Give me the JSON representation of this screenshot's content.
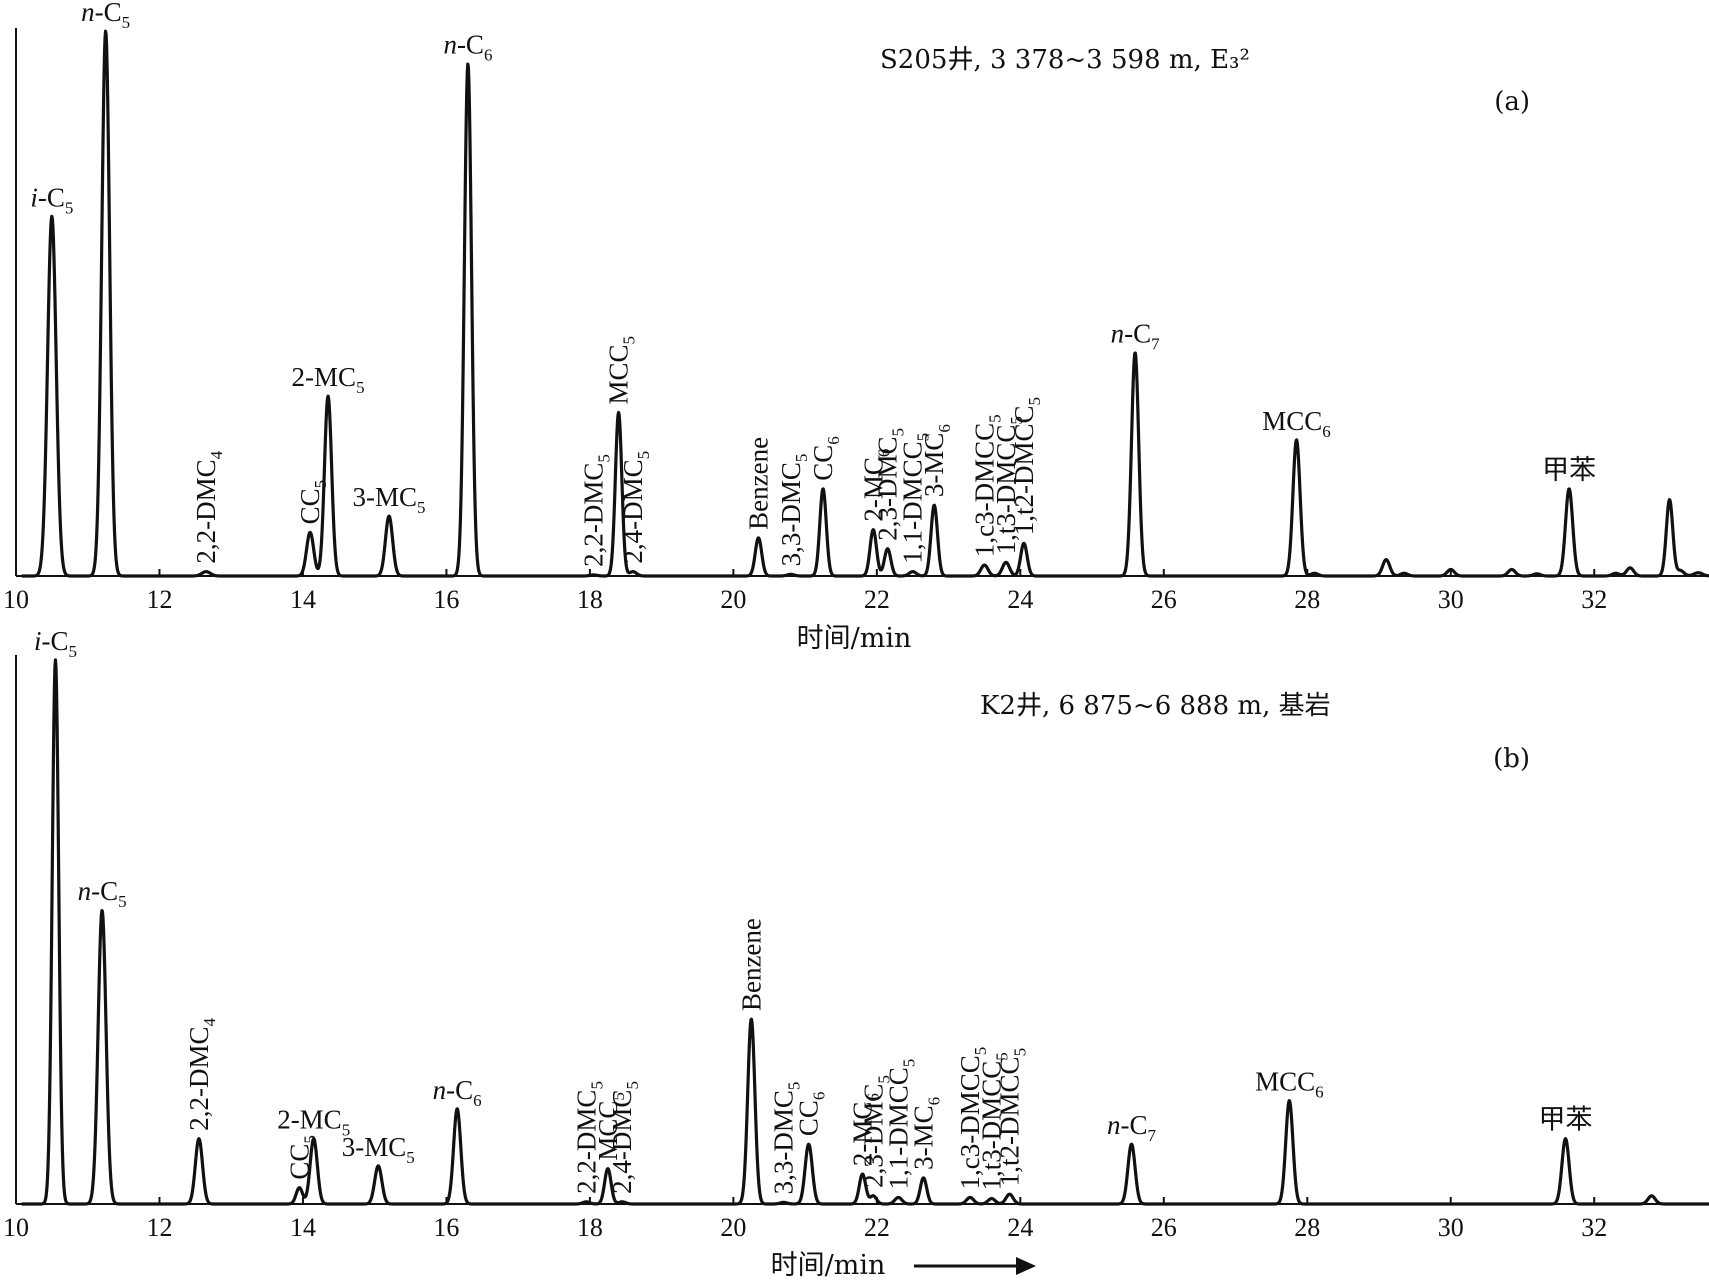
{
  "chart_data": [
    {
      "type": "line",
      "info": "S205井, 3 378~3 598 m, E₃²",
      "panel_label": "(a)",
      "xlabel": "时间/min",
      "xlim": [
        10,
        33.6
      ],
      "xticks": [
        10,
        12,
        14,
        16,
        18,
        20,
        22,
        24,
        26,
        28,
        30,
        32
      ],
      "peaks": [
        {
          "t": 10.5,
          "h": 0.66,
          "w": 0.06,
          "label": "i-C5",
          "orient": "h"
        },
        {
          "t": 11.25,
          "h": 1.0,
          "w": 0.055,
          "label": "n-C5",
          "orient": "h"
        },
        {
          "t": 12.65,
          "h": 0.008,
          "w": 0.06,
          "label": "2,2-DMC4",
          "orient": "v"
        },
        {
          "t": 14.1,
          "h": 0.08,
          "w": 0.05,
          "label": "CC5",
          "orient": "v"
        },
        {
          "t": 14.35,
          "h": 0.33,
          "w": 0.05,
          "label": "2-MC5",
          "orient": "h"
        },
        {
          "t": 15.2,
          "h": 0.11,
          "w": 0.05,
          "label": "3-MC5",
          "orient": "h"
        },
        {
          "t": 16.3,
          "h": 0.94,
          "w": 0.05,
          "label": "n-C6",
          "orient": "h"
        },
        {
          "t": 18.05,
          "h": 0.002,
          "w": 0.05,
          "label": "2,2-DMC5",
          "orient": "v"
        },
        {
          "t": 18.4,
          "h": 0.3,
          "w": 0.045,
          "label": "MCC5",
          "orient": "v"
        },
        {
          "t": 18.6,
          "h": 0.008,
          "w": 0.05,
          "label": "2,4-DMC5",
          "orient": "v"
        },
        {
          "t": 20.35,
          "h": 0.07,
          "w": 0.045,
          "label": "Benzene",
          "orient": "v"
        },
        {
          "t": 20.8,
          "h": 0.003,
          "w": 0.05,
          "label": "3,3-DMC5",
          "orient": "v"
        },
        {
          "t": 21.25,
          "h": 0.16,
          "w": 0.045,
          "label": "CC6",
          "orient": "v"
        },
        {
          "t": 21.95,
          "h": 0.085,
          "w": 0.045,
          "label": "2-MC6",
          "orient": "v"
        },
        {
          "t": 22.15,
          "h": 0.05,
          "w": 0.045,
          "label": "2,3-DMC5",
          "orient": "v"
        },
        {
          "t": 22.5,
          "h": 0.008,
          "w": 0.05,
          "label": "1,1-DMCC5",
          "orient": "v"
        },
        {
          "t": 22.8,
          "h": 0.13,
          "w": 0.045,
          "label": "3-MC6",
          "orient": "v"
        },
        {
          "t": 23.5,
          "h": 0.02,
          "w": 0.05,
          "label": "1,c3-DMCC5",
          "orient": "v"
        },
        {
          "t": 23.8,
          "h": 0.025,
          "w": 0.05,
          "label": "1,t3-DMCC5",
          "orient": "v"
        },
        {
          "t": 24.05,
          "h": 0.06,
          "w": 0.045,
          "label": "1,t2-DMCC5",
          "orient": "v"
        },
        {
          "t": 25.6,
          "h": 0.41,
          "w": 0.05,
          "label": "n-C7",
          "orient": "h"
        },
        {
          "t": 27.85,
          "h": 0.25,
          "w": 0.05,
          "label": "MCC6",
          "orient": "h"
        },
        {
          "t": 28.1,
          "h": 0.005,
          "w": 0.05,
          "label": "",
          "orient": "h"
        },
        {
          "t": 29.1,
          "h": 0.03,
          "w": 0.05,
          "label": "",
          "orient": "h"
        },
        {
          "t": 29.35,
          "h": 0.005,
          "w": 0.05,
          "label": "",
          "orient": "h"
        },
        {
          "t": 30.0,
          "h": 0.012,
          "w": 0.05,
          "label": "",
          "orient": "h"
        },
        {
          "t": 30.85,
          "h": 0.012,
          "w": 0.05,
          "label": "",
          "orient": "h"
        },
        {
          "t": 31.2,
          "h": 0.004,
          "w": 0.05,
          "label": "",
          "orient": "h"
        },
        {
          "t": 31.65,
          "h": 0.16,
          "w": 0.05,
          "label": "甲苯",
          "orient": "h"
        },
        {
          "t": 32.3,
          "h": 0.005,
          "w": 0.05,
          "label": "",
          "orient": "h"
        },
        {
          "t": 32.5,
          "h": 0.015,
          "w": 0.05,
          "label": "",
          "orient": "h"
        },
        {
          "t": 33.05,
          "h": 0.14,
          "w": 0.045,
          "label": "",
          "orient": "h"
        },
        {
          "t": 33.2,
          "h": 0.01,
          "w": 0.05,
          "label": "",
          "orient": "h"
        },
        {
          "t": 33.45,
          "h": 0.006,
          "w": 0.06,
          "label": "",
          "orient": "h"
        }
      ]
    },
    {
      "type": "line",
      "info": "K2井, 6 875~6 888 m, 基岩",
      "panel_label": "(b)",
      "xlabel": "时间/min",
      "xlim": [
        10,
        33.6
      ],
      "xticks": [
        10,
        12,
        14,
        16,
        18,
        20,
        22,
        24,
        26,
        28,
        30,
        32
      ],
      "peaks": [
        {
          "t": 10.55,
          "h": 1.0,
          "w": 0.045,
          "label": "i-C5",
          "orient": "h"
        },
        {
          "t": 11.2,
          "h": 0.54,
          "w": 0.055,
          "label": "n-C5",
          "orient": "h"
        },
        {
          "t": 12.55,
          "h": 0.12,
          "w": 0.05,
          "label": "2,2-DMC4",
          "orient": "v"
        },
        {
          "t": 13.95,
          "h": 0.03,
          "w": 0.045,
          "label": "CC5",
          "orient": "v"
        },
        {
          "t": 14.15,
          "h": 0.12,
          "w": 0.05,
          "label": "2-MC5",
          "orient": "h"
        },
        {
          "t": 15.05,
          "h": 0.07,
          "w": 0.05,
          "label": "3-MC5",
          "orient": "h"
        },
        {
          "t": 16.15,
          "h": 0.175,
          "w": 0.05,
          "label": "n-C6",
          "orient": "h"
        },
        {
          "t": 17.95,
          "h": 0.004,
          "w": 0.05,
          "label": "2,2-DMC5",
          "orient": "v"
        },
        {
          "t": 18.25,
          "h": 0.065,
          "w": 0.045,
          "label": "MCC5",
          "orient": "v"
        },
        {
          "t": 18.45,
          "h": 0.004,
          "w": 0.05,
          "label": "2,4-DMC5",
          "orient": "v"
        },
        {
          "t": 20.25,
          "h": 0.34,
          "w": 0.05,
          "label": "Benzene",
          "orient": "v"
        },
        {
          "t": 20.7,
          "h": 0.003,
          "w": 0.05,
          "label": "3,3-DMC5",
          "orient": "v"
        },
        {
          "t": 21.05,
          "h": 0.11,
          "w": 0.05,
          "label": "CC6",
          "orient": "v"
        },
        {
          "t": 21.8,
          "h": 0.055,
          "w": 0.045,
          "label": "2-MC6",
          "orient": "v"
        },
        {
          "t": 21.95,
          "h": 0.015,
          "w": 0.045,
          "label": "2,3-DMC5",
          "orient": "v"
        },
        {
          "t": 22.3,
          "h": 0.012,
          "w": 0.05,
          "label": "1,1-DMCC5",
          "orient": "v"
        },
        {
          "t": 22.65,
          "h": 0.048,
          "w": 0.045,
          "label": "3-MC6",
          "orient": "v"
        },
        {
          "t": 23.3,
          "h": 0.012,
          "w": 0.05,
          "label": "1,c3-DMCC5",
          "orient": "v"
        },
        {
          "t": 23.6,
          "h": 0.01,
          "w": 0.05,
          "label": "1,t3-DMCC5",
          "orient": "v"
        },
        {
          "t": 23.85,
          "h": 0.018,
          "w": 0.05,
          "label": "1,t2-DMCC5",
          "orient": "v"
        },
        {
          "t": 25.55,
          "h": 0.11,
          "w": 0.05,
          "label": "n-C7",
          "orient": "h"
        },
        {
          "t": 27.75,
          "h": 0.19,
          "w": 0.05,
          "label": "MCC6",
          "orient": "h"
        },
        {
          "t": 31.6,
          "h": 0.12,
          "w": 0.05,
          "label": "甲苯",
          "orient": "h"
        },
        {
          "t": 32.8,
          "h": 0.015,
          "w": 0.05,
          "label": "",
          "orient": "h"
        }
      ]
    }
  ]
}
